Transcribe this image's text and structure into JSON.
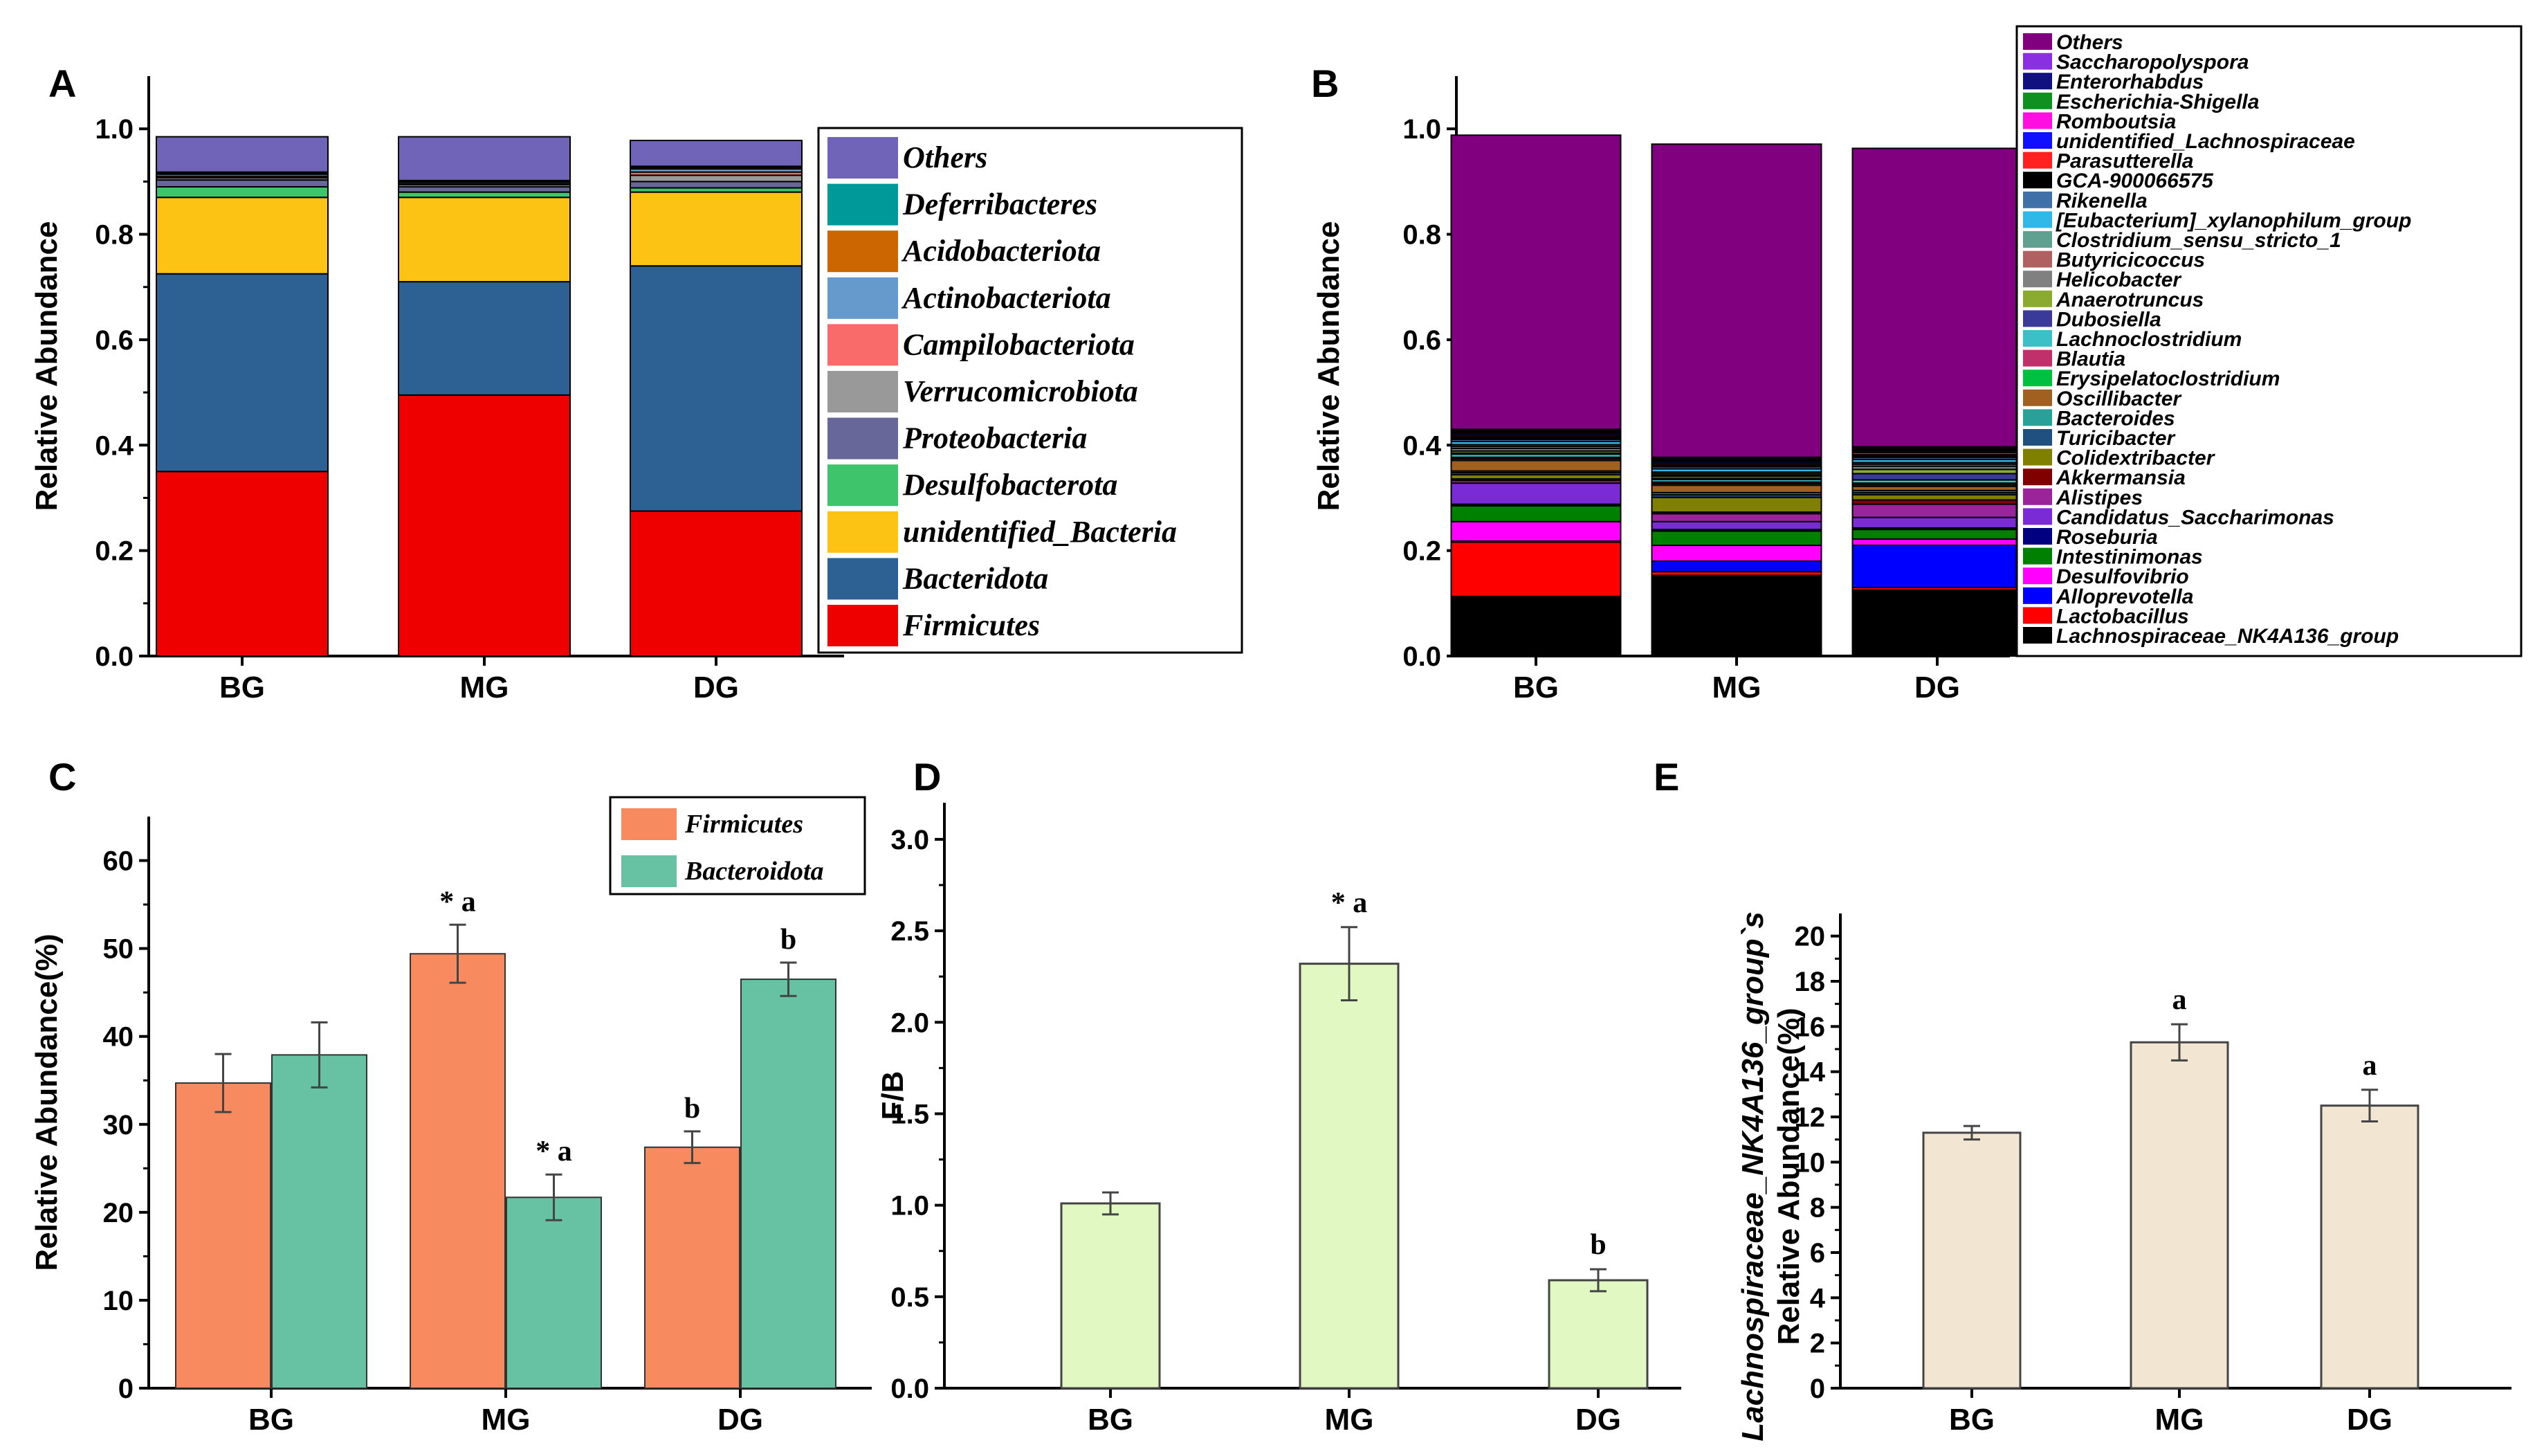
{
  "chart_data": [
    {
      "panel": "A",
      "type": "bar",
      "stacked": true,
      "ylabel": "Relative Abundance",
      "ylim": [
        0,
        1.1
      ],
      "yticks": [
        "0.0",
        "0.2",
        "0.4",
        "0.6",
        "0.8",
        "1.0"
      ],
      "categories": [
        "BG",
        "MG",
        "DG"
      ],
      "legend_position": "right",
      "series": [
        {
          "name": "Firmicutes",
          "color": "#ee0000",
          "values": [
            0.35,
            0.495,
            0.275
          ]
        },
        {
          "name": "Bacteridota",
          "color": "#2e6193",
          "values": [
            0.375,
            0.215,
            0.465
          ]
        },
        {
          "name": "unidentified_Bacteria",
          "color": "#fcc314",
          "values": [
            0.145,
            0.16,
            0.14
          ]
        },
        {
          "name": "Desulfobacterota",
          "color": "#3ec46a",
          "values": [
            0.02,
            0.01,
            0.008
          ]
        },
        {
          "name": "Proteobacteria",
          "color": "#676799",
          "values": [
            0.013,
            0.01,
            0.012
          ]
        },
        {
          "name": "Verrucomicrobiota",
          "color": "#999999",
          "values": [
            0.004,
            0.004,
            0.012
          ]
        },
        {
          "name": "Campilobacteriota",
          "color": "#f96b6b",
          "values": [
            0.003,
            0.002,
            0.006
          ]
        },
        {
          "name": "Actinobacteriota",
          "color": "#6699cc",
          "values": [
            0.004,
            0.003,
            0.006
          ]
        },
        {
          "name": "Acidobacteriota",
          "color": "#cc6600",
          "values": [
            0.002,
            0.002,
            0.003
          ]
        },
        {
          "name": "Deferribacteres",
          "color": "#009999",
          "values": [
            0.002,
            0.001,
            0.002
          ]
        },
        {
          "name": "Others",
          "color": "#6f64b8",
          "values": [
            0.067,
            0.083,
            0.049
          ]
        }
      ]
    },
    {
      "panel": "B",
      "type": "bar",
      "stacked": true,
      "ylabel": "Relative Abundance",
      "ylim": [
        0,
        1.1
      ],
      "yticks": [
        "0.0",
        "0.2",
        "0.4",
        "0.6",
        "0.8",
        "1.0"
      ],
      "categories": [
        "BG",
        "MG",
        "DG"
      ],
      "legend_position": "right",
      "series": [
        {
          "name": "Lachnospiraceae_NK4A136_group",
          "color": "#000000",
          "values": [
            0.113,
            0.153,
            0.125
          ]
        },
        {
          "name": "Lactobacillus",
          "color": "#ff0000",
          "values": [
            0.103,
            0.007,
            0.005
          ]
        },
        {
          "name": "Alloprevotella",
          "color": "#0000ff",
          "values": [
            0.002,
            0.02,
            0.08
          ]
        },
        {
          "name": "Desulfovibrio",
          "color": "#ff00ff",
          "values": [
            0.037,
            0.03,
            0.012
          ]
        },
        {
          "name": "Intestinimonas",
          "color": "#008000",
          "values": [
            0.03,
            0.027,
            0.018
          ]
        },
        {
          "name": "Roseburia",
          "color": "#000080",
          "values": [
            0.003,
            0.003,
            0.003
          ]
        },
        {
          "name": "Candidatus_Saccharimonas",
          "color": "#7b2bd6",
          "values": [
            0.04,
            0.015,
            0.02
          ]
        },
        {
          "name": "Alistipes",
          "color": "#9b249b",
          "values": [
            0.005,
            0.015,
            0.025
          ]
        },
        {
          "name": "Akkermansia",
          "color": "#800000",
          "values": [
            0.003,
            0.003,
            0.008
          ]
        },
        {
          "name": "Colidextribacter",
          "color": "#808000",
          "values": [
            0.008,
            0.028,
            0.01
          ]
        },
        {
          "name": "Turicibacter",
          "color": "#205080",
          "values": [
            0.004,
            0.005,
            0.004
          ]
        },
        {
          "name": "Bacteroides",
          "color": "#2aa198",
          "values": [
            0.003,
            0.004,
            0.004
          ]
        },
        {
          "name": "Oscillibacter",
          "color": "#a06020",
          "values": [
            0.02,
            0.014,
            0.008
          ]
        },
        {
          "name": "Erysipelatoclostridium",
          "color": "#00c040",
          "values": [
            0.003,
            0.003,
            0.003
          ]
        },
        {
          "name": "Blautia",
          "color": "#c0306a",
          "values": [
            0.003,
            0.003,
            0.003
          ]
        },
        {
          "name": "Lachnoclostridium",
          "color": "#3cc0c8",
          "values": [
            0.006,
            0.005,
            0.006
          ]
        },
        {
          "name": "Dubosiella",
          "color": "#3a3a9a",
          "values": [
            0.002,
            0.002,
            0.012
          ]
        },
        {
          "name": "Anaerotruncus",
          "color": "#8aaa30",
          "values": [
            0.004,
            0.004,
            0.008
          ]
        },
        {
          "name": "Helicobacter",
          "color": "#808080",
          "values": [
            0.005,
            0.002,
            0.006
          ]
        },
        {
          "name": "Butyricicoccus",
          "color": "#b06060",
          "values": [
            0.004,
            0.003,
            0.004
          ]
        },
        {
          "name": "Clostridium_sensu_stricto_1",
          "color": "#60a090",
          "values": [
            0.003,
            0.003,
            0.003
          ]
        },
        {
          "name": "[Eubacterium]_xylanophilum_group",
          "color": "#30b8e8",
          "values": [
            0.006,
            0.006,
            0.006
          ]
        },
        {
          "name": "Rikenella",
          "color": "#4070a8",
          "values": [
            0.004,
            0.004,
            0.004
          ]
        },
        {
          "name": "GCA-900066575",
          "color": "#000000",
          "values": [
            0.005,
            0.004,
            0.005
          ]
        },
        {
          "name": "Parasutterella",
          "color": "#ff2020",
          "values": [
            0.003,
            0.003,
            0.004
          ]
        },
        {
          "name": "unidentified_Lachnospiraceae",
          "color": "#1010ff",
          "values": [
            0.003,
            0.003,
            0.003
          ]
        },
        {
          "name": "Romboutsia",
          "color": "#ff10e0",
          "values": [
            0.002,
            0.002,
            0.002
          ]
        },
        {
          "name": "Escherichia-Shigella",
          "color": "#109020",
          "values": [
            0.002,
            0.002,
            0.002
          ]
        },
        {
          "name": "Enterorhabdus",
          "color": "#101080",
          "values": [
            0.002,
            0.002,
            0.002
          ]
        },
        {
          "name": "Saccharopolyspora",
          "color": "#8a30e0",
          "values": [
            0.002,
            0.002,
            0.002
          ]
        },
        {
          "name": "Others",
          "color": "#800080",
          "values": [
            0.558,
            0.594,
            0.566
          ]
        }
      ]
    },
    {
      "panel": "C",
      "type": "bar",
      "grouped": true,
      "ylabel": "Relative Abundance(%)",
      "ylim": [
        0,
        65
      ],
      "yticks": [
        "0",
        "10",
        "20",
        "30",
        "40",
        "50",
        "60"
      ],
      "categories": [
        "BG",
        "MG",
        "DG"
      ],
      "legend_position": "top-right",
      "series": [
        {
          "name": "Firmicutes",
          "color": "#f88a60",
          "values": [
            34.7,
            49.4,
            27.4
          ],
          "errors": [
            3.3,
            3.3,
            1.8
          ],
          "labels": [
            "",
            "* a",
            "b"
          ]
        },
        {
          "name": "Bacteroidota",
          "color": "#66c2a3",
          "values": [
            37.9,
            21.7,
            46.5
          ],
          "errors": [
            3.7,
            2.6,
            1.9
          ],
          "labels": [
            "",
            "* a",
            "b"
          ]
        }
      ]
    },
    {
      "panel": "D",
      "type": "bar",
      "ylabel": "F/B",
      "ylim": [
        0,
        3.2
      ],
      "yticks": [
        "0.0",
        "0.5",
        "1.0",
        "1.5",
        "2.0",
        "2.5",
        "3.0"
      ],
      "categories": [
        "BG",
        "MG",
        "DG"
      ],
      "color": "#e2f8c2",
      "values": [
        1.01,
        2.32,
        0.59
      ],
      "errors": [
        0.06,
        0.2,
        0.06
      ],
      "labels": [
        "",
        "* a",
        "b"
      ]
    },
    {
      "panel": "E",
      "type": "bar",
      "ylabel_line1": "Lachnospiraceae_NK4A136_group`s",
      "ylabel_line2": "Relative Abundance(%)",
      "ylim": [
        0,
        21
      ],
      "yticks": [
        "0",
        "2",
        "4",
        "6",
        "8",
        "10",
        "12",
        "14",
        "16",
        "18",
        "20"
      ],
      "categories": [
        "BG",
        "MG",
        "DG"
      ],
      "color": "#f2e6d3",
      "values": [
        11.3,
        15.3,
        12.5
      ],
      "errors": [
        0.3,
        0.8,
        0.7
      ],
      "labels": [
        "",
        "a",
        "a"
      ]
    }
  ]
}
